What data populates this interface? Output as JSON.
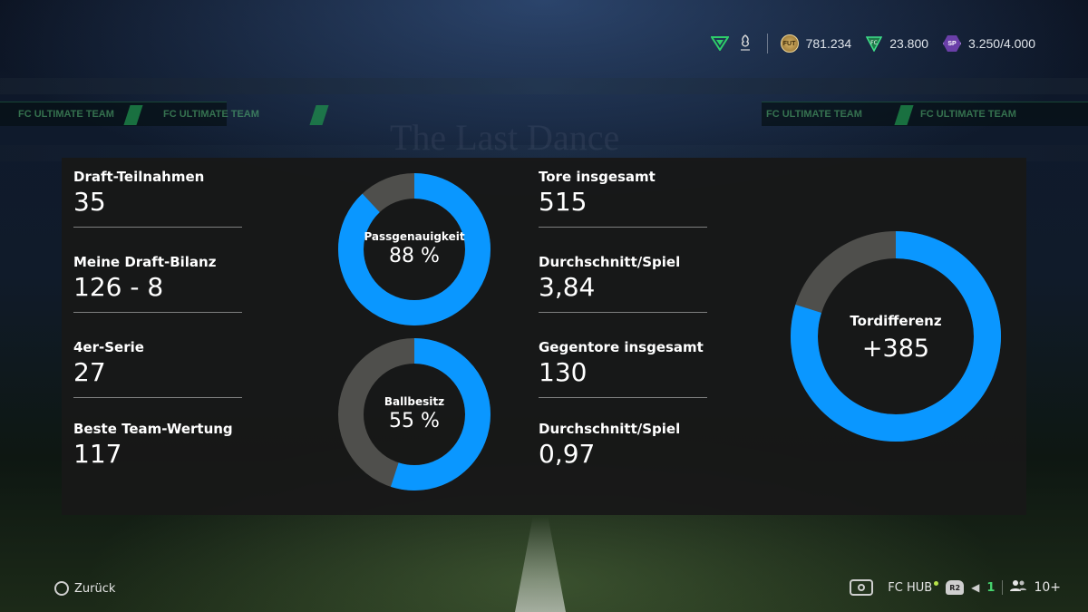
{
  "background": {
    "title_text": "The Last Dance"
  },
  "header": {
    "currencies": [
      {
        "icon": "coins-icon",
        "value": "781.234"
      },
      {
        "icon": "fc-points-icon",
        "value": "23.800"
      },
      {
        "icon": "season-points-icon",
        "icon_text": "SP",
        "value": "3.250/4.000"
      }
    ],
    "club_badge_icon": "club-badge-icon",
    "crest_icon": "liverpool-crest-icon",
    "coin_icon_text": "FUT"
  },
  "stats_left": [
    {
      "label": "Draft-Teilnahmen",
      "value": "35"
    },
    {
      "label": "Meine Draft-Bilanz",
      "value": "126 - 8"
    },
    {
      "label": "4er-Serie",
      "value": "27"
    },
    {
      "label": "Beste Team-Wertung",
      "value": "117"
    }
  ],
  "stats_right": [
    {
      "label": "Tore insgesamt",
      "value": "515"
    },
    {
      "label": "Durchschnitt/Spiel",
      "value": "3,84"
    },
    {
      "label": "Gegentore insgesamt",
      "value": "130"
    },
    {
      "label": "Durchschnitt/Spiel",
      "value": "0,97"
    }
  ],
  "donuts": {
    "pass": {
      "label": "Passgenauigkeit",
      "value_text": "88 %",
      "fraction": 0.88
    },
    "possession": {
      "label": "Ballbesitz",
      "value_text": "55 %",
      "fraction": 0.55
    },
    "goal_diff": {
      "label": "Tordifferenz",
      "value_text": "+385",
      "fraction": 0.7985
    }
  },
  "colors": {
    "accent_blue": "#0a97ff",
    "remainder_gray": "#4f4f4c",
    "panel": "#181818"
  },
  "footer": {
    "back_label": "Zurück",
    "hub_label": "FC HUB",
    "r2_label": "R2",
    "voice_count": "1",
    "friends_label": "10+"
  }
}
